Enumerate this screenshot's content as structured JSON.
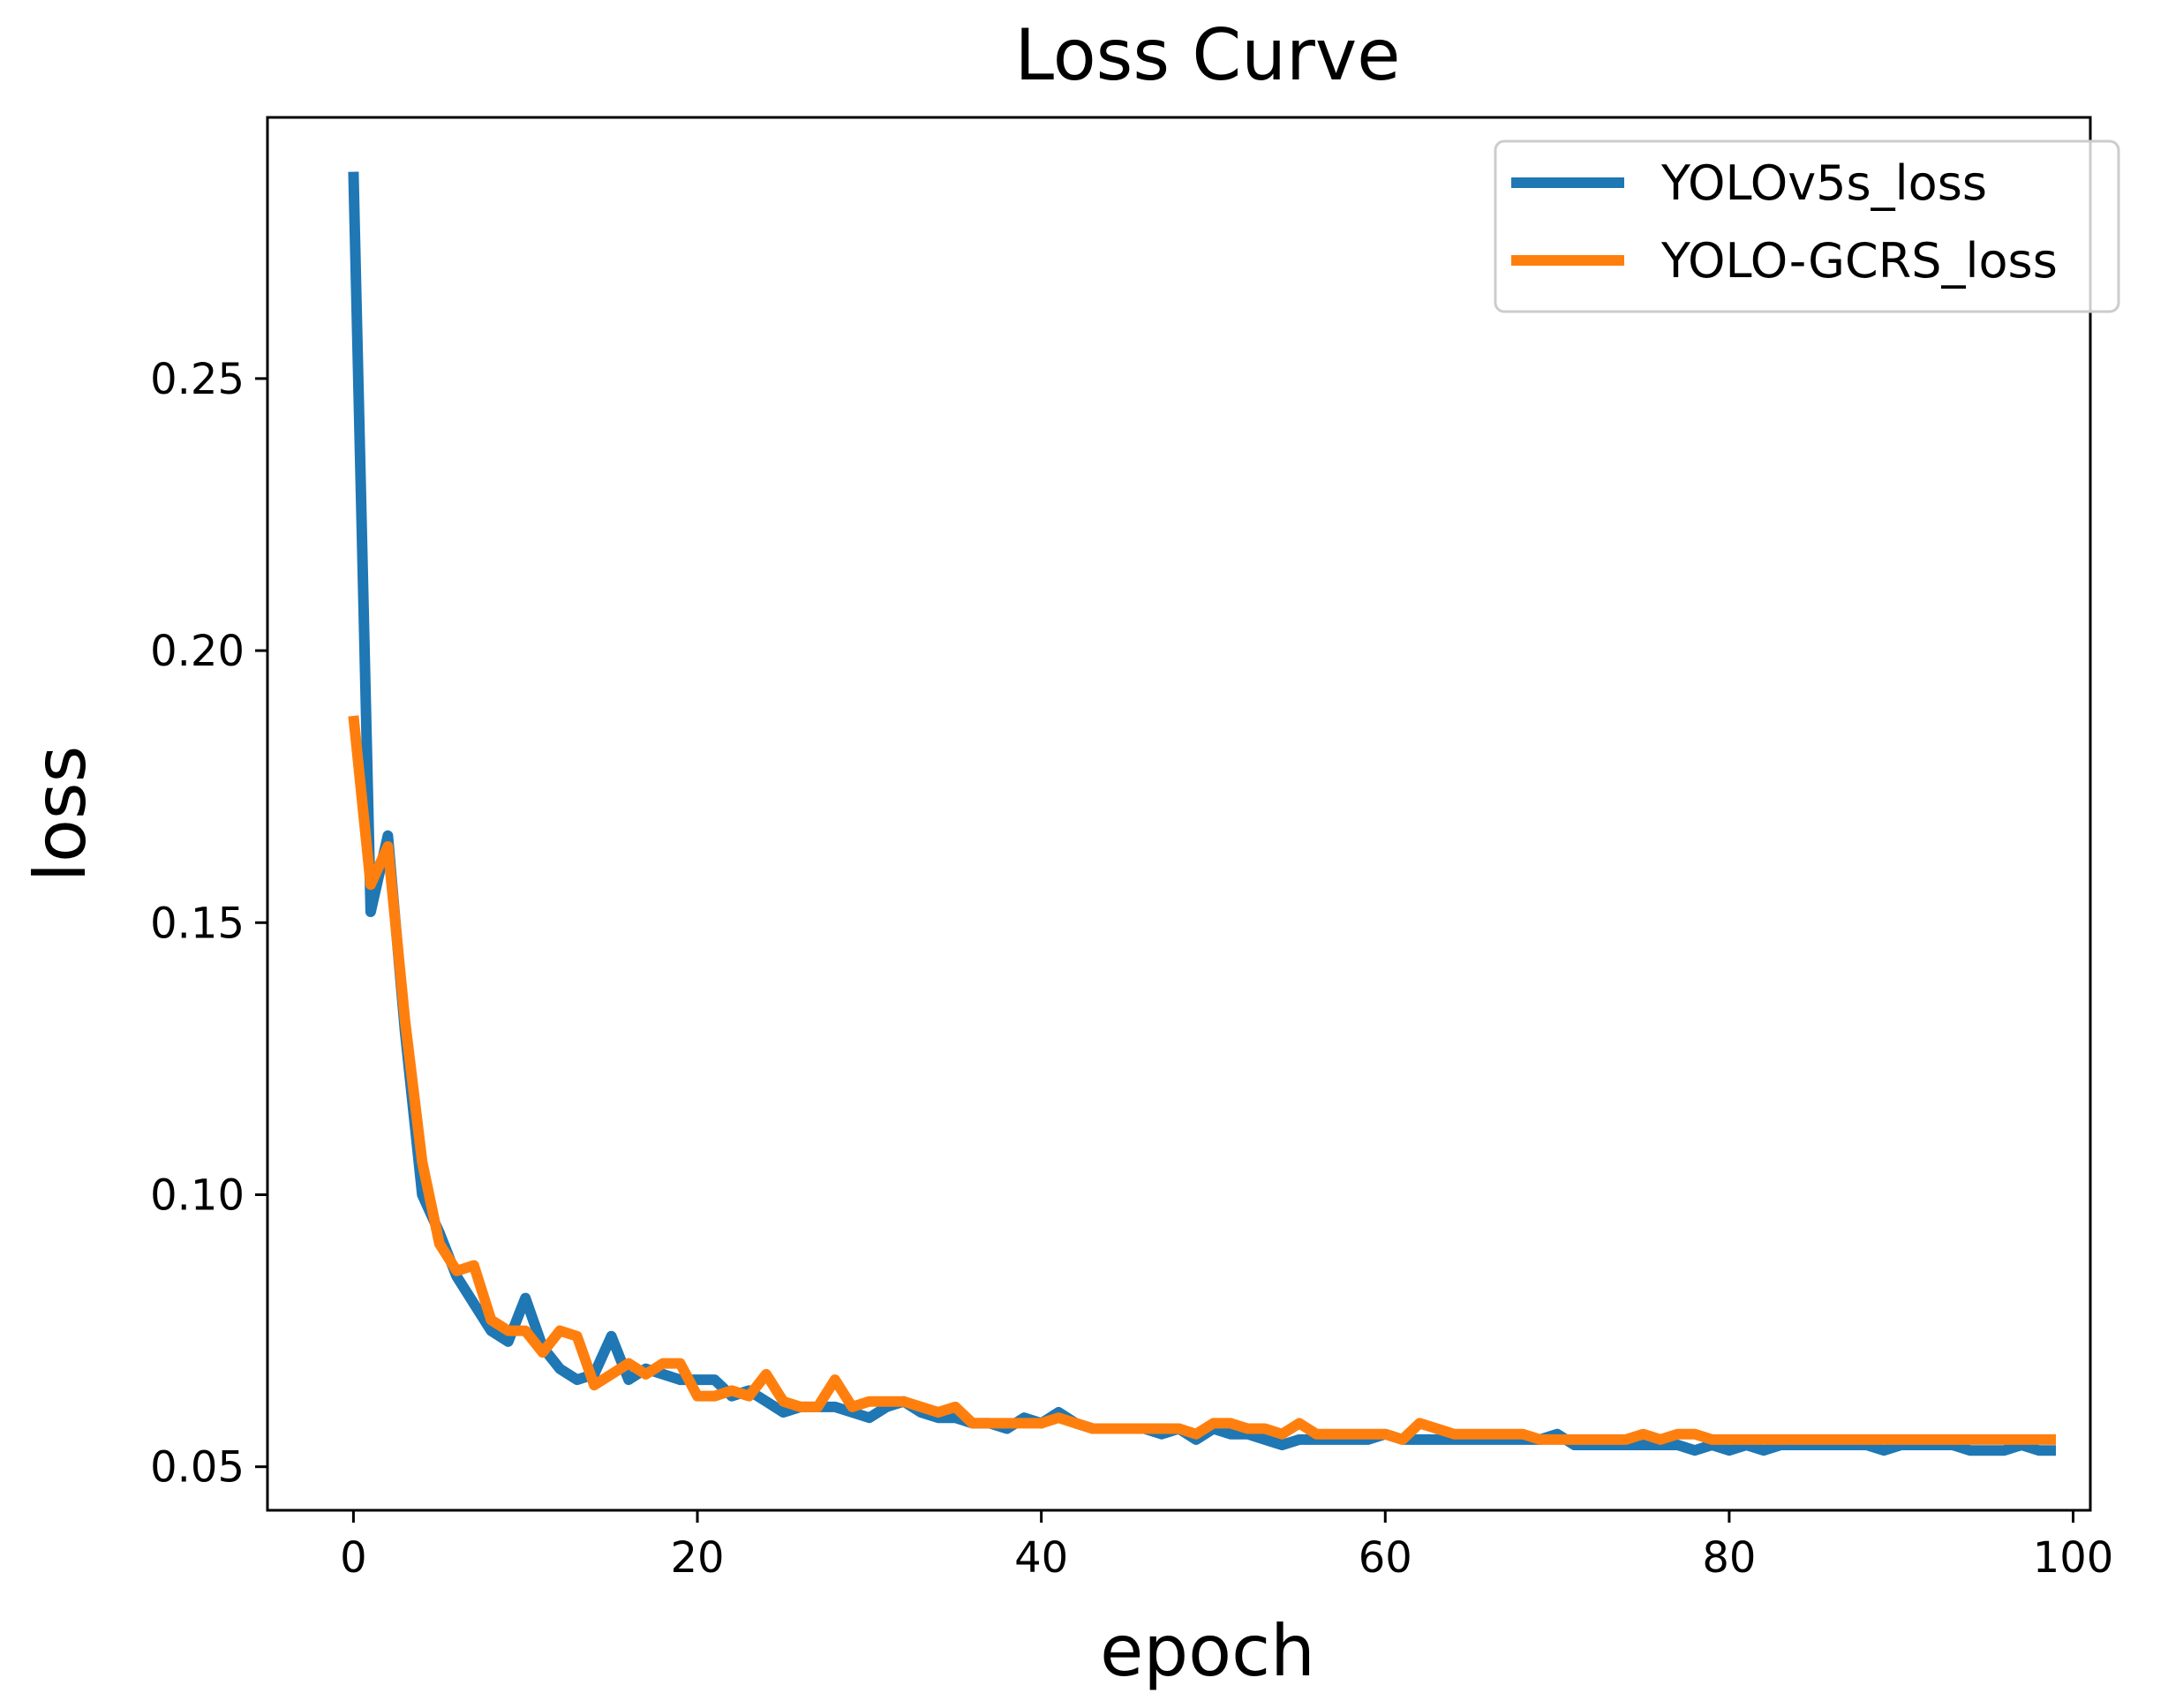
{
  "chart_data": {
    "type": "line",
    "title": "Loss Curve",
    "xlabel": "epoch",
    "ylabel": "loss",
    "xlim": [
      -5,
      101
    ],
    "ylim": [
      0.042,
      0.298
    ],
    "xticks": [
      0,
      20,
      40,
      60,
      80,
      100
    ],
    "xtick_labels": [
      "0",
      "20",
      "40",
      "60",
      "80",
      "100"
    ],
    "yticks": [
      0.05,
      0.1,
      0.15,
      0.2,
      0.25
    ],
    "ytick_labels": [
      "0.05",
      "0.10",
      "0.15",
      "0.20",
      "0.25"
    ],
    "grid": false,
    "legend_position": "top-right",
    "series": [
      {
        "name": "YOLOv5s_loss",
        "color": "#1f77b4",
        "x": [
          0,
          1,
          2,
          3,
          4,
          5,
          6,
          7,
          8,
          9,
          10,
          11,
          12,
          13,
          14,
          15,
          16,
          17,
          18,
          19,
          20,
          21,
          22,
          23,
          24,
          25,
          26,
          27,
          28,
          29,
          30,
          31,
          32,
          33,
          34,
          35,
          36,
          37,
          38,
          39,
          40,
          41,
          42,
          43,
          44,
          45,
          46,
          47,
          48,
          49,
          50,
          51,
          52,
          53,
          54,
          55,
          56,
          57,
          58,
          59,
          60,
          61,
          62,
          63,
          64,
          65,
          66,
          67,
          68,
          69,
          70,
          71,
          72,
          73,
          74,
          75,
          76,
          77,
          78,
          79,
          80,
          81,
          82,
          83,
          84,
          85,
          86,
          87,
          88,
          89,
          90,
          91,
          92,
          93,
          94,
          95,
          96,
          97,
          98,
          99
        ],
        "y": [
          0.288,
          0.152,
          0.166,
          0.13,
          0.1,
          0.093,
          0.085,
          0.08,
          0.075,
          0.073,
          0.081,
          0.072,
          0.068,
          0.066,
          0.067,
          0.074,
          0.066,
          0.068,
          0.067,
          0.066,
          0.066,
          0.066,
          0.063,
          0.064,
          0.062,
          0.06,
          0.061,
          0.061,
          0.061,
          0.06,
          0.059,
          0.061,
          0.062,
          0.06,
          0.059,
          0.059,
          0.058,
          0.058,
          0.057,
          0.059,
          0.058,
          0.06,
          0.058,
          0.057,
          0.057,
          0.057,
          0.057,
          0.056,
          0.057,
          0.055,
          0.057,
          0.056,
          0.056,
          0.055,
          0.054,
          0.055,
          0.055,
          0.055,
          0.055,
          0.055,
          0.056,
          0.055,
          0.055,
          0.055,
          0.055,
          0.055,
          0.055,
          0.055,
          0.055,
          0.055,
          0.056,
          0.054,
          0.054,
          0.054,
          0.054,
          0.054,
          0.054,
          0.054,
          0.053,
          0.054,
          0.053,
          0.054,
          0.053,
          0.054,
          0.054,
          0.054,
          0.054,
          0.054,
          0.054,
          0.053,
          0.054,
          0.054,
          0.054,
          0.054,
          0.053,
          0.053,
          0.053,
          0.054,
          0.053,
          0.053
        ]
      },
      {
        "name": "YOLO-GCRS_loss",
        "color": "#ff7f0e",
        "x": [
          0,
          1,
          2,
          3,
          4,
          5,
          6,
          7,
          8,
          9,
          10,
          11,
          12,
          13,
          14,
          15,
          16,
          17,
          18,
          19,
          20,
          21,
          22,
          23,
          24,
          25,
          26,
          27,
          28,
          29,
          30,
          31,
          32,
          33,
          34,
          35,
          36,
          37,
          38,
          39,
          40,
          41,
          42,
          43,
          44,
          45,
          46,
          47,
          48,
          49,
          50,
          51,
          52,
          53,
          54,
          55,
          56,
          57,
          58,
          59,
          60,
          61,
          62,
          63,
          64,
          65,
          66,
          67,
          68,
          69,
          70,
          71,
          72,
          73,
          74,
          75,
          76,
          77,
          78,
          79,
          80,
          81,
          82,
          83,
          84,
          85,
          86,
          87,
          88,
          89,
          90,
          91,
          92,
          93,
          94,
          95,
          96,
          97,
          98,
          99
        ],
        "y": [
          0.188,
          0.157,
          0.164,
          0.132,
          0.106,
          0.091,
          0.086,
          0.087,
          0.077,
          0.075,
          0.075,
          0.071,
          0.075,
          0.074,
          0.065,
          0.067,
          0.069,
          0.067,
          0.069,
          0.069,
          0.063,
          0.063,
          0.064,
          0.063,
          0.067,
          0.062,
          0.061,
          0.061,
          0.066,
          0.061,
          0.062,
          0.062,
          0.062,
          0.061,
          0.06,
          0.061,
          0.058,
          0.058,
          0.058,
          0.058,
          0.058,
          0.059,
          0.058,
          0.057,
          0.057,
          0.057,
          0.057,
          0.057,
          0.057,
          0.056,
          0.058,
          0.058,
          0.057,
          0.057,
          0.056,
          0.058,
          0.056,
          0.056,
          0.056,
          0.056,
          0.056,
          0.055,
          0.058,
          0.057,
          0.056,
          0.056,
          0.056,
          0.056,
          0.056,
          0.055,
          0.055,
          0.055,
          0.055,
          0.055,
          0.055,
          0.056,
          0.055,
          0.056,
          0.056,
          0.055,
          0.055,
          0.055,
          0.055,
          0.055,
          0.055,
          0.055,
          0.055,
          0.055,
          0.055,
          0.055,
          0.055,
          0.055,
          0.055,
          0.055,
          0.055,
          0.055,
          0.055,
          0.055,
          0.055,
          0.055
        ]
      }
    ]
  }
}
